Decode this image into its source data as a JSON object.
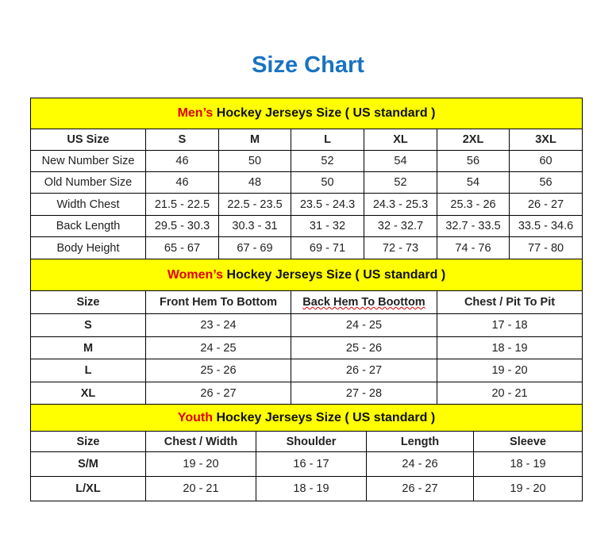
{
  "title": "Size Chart",
  "colors": {
    "title": "#1a73c0",
    "header_bg": "#ffff00",
    "highlight": "#e00000"
  },
  "sections": [
    {
      "header_highlight": "Men’s",
      "header_rest": " Hockey Jerseys Size ( US standard )",
      "columns": [
        "US Size",
        "S",
        "M",
        "L",
        "XL",
        "2XL",
        "3XL"
      ],
      "rows": [
        [
          "New Number Size",
          "46",
          "50",
          "52",
          "54",
          "56",
          "60"
        ],
        [
          "Old Number Size",
          "46",
          "48",
          "50",
          "52",
          "54",
          "56"
        ],
        [
          "Width Chest",
          "21.5 - 22.5",
          "22.5 - 23.5",
          "23.5 - 24.3",
          "24.3 - 25.3",
          "25.3 - 26",
          "26 - 27"
        ],
        [
          "Back Length",
          "29.5 - 30.3",
          "30.3 - 31",
          "31 - 32",
          "32 - 32.7",
          "32.7 - 33.5",
          "33.5 - 34.6"
        ],
        [
          "Body Height",
          "65 - 67",
          "67 - 69",
          "69 - 71",
          "72 - 73",
          "74 - 76",
          "77 - 80"
        ]
      ]
    },
    {
      "header_highlight": "Women’s",
      "header_rest": " Hockey Jerseys Size ( US standard )",
      "columns": [
        "Size",
        "Front Hem To Bottom",
        "Back Hem To Boottom",
        "Chest / Pit To Pit"
      ],
      "rows": [
        [
          "S",
          "23 - 24",
          "24 - 25",
          "17 - 18"
        ],
        [
          "M",
          "24 - 25",
          "25 - 26",
          "18 - 19"
        ],
        [
          "L",
          "25 - 26",
          "26 - 27",
          "19 - 20"
        ],
        [
          "XL",
          "26 - 27",
          "27 - 28",
          "20 - 21"
        ]
      ]
    },
    {
      "header_highlight": "Youth",
      "header_rest": " Hockey Jerseys Size ( US standard )",
      "columns": [
        "Size",
        "Chest / Width",
        "Shoulder",
        "Length",
        "Sleeve"
      ],
      "rows": [
        [
          "S/M",
          "19 - 20",
          "16 - 17",
          "24 - 26",
          "18 - 19"
        ],
        [
          "L/XL",
          "20 - 21",
          "18 - 19",
          "26 - 27",
          "19 - 20"
        ]
      ]
    }
  ]
}
